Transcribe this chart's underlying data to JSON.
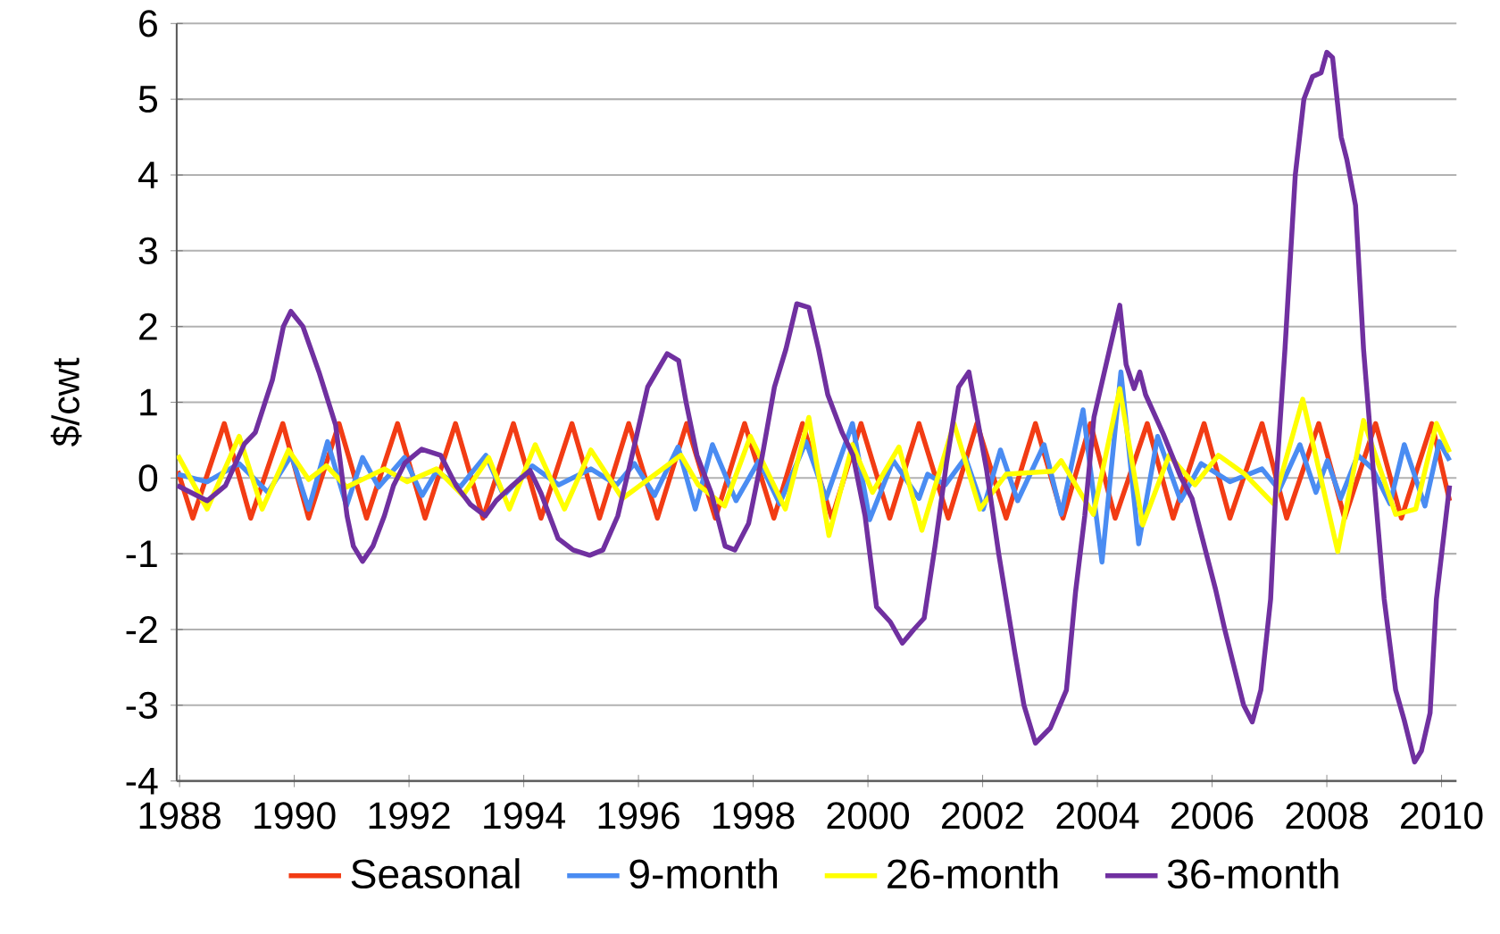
{
  "chart_data": {
    "type": "line",
    "ylabel": "$/cwt",
    "xlim": [
      1987.95,
      2010.26
    ],
    "xticks": [
      1988,
      1990,
      1992,
      1994,
      1996,
      1998,
      2000,
      2002,
      2004,
      2006,
      2008,
      2010
    ],
    "ylim": [
      -4,
      6
    ],
    "yticks": [
      -4,
      -3,
      -2,
      -1,
      0,
      1,
      2,
      3,
      4,
      5,
      6
    ],
    "grid": "y",
    "legend": "bottom",
    "series": [
      {
        "name": "Seasonal",
        "color": "#f23c14",
        "x": [
          1987.97,
          1988.23,
          1988.78,
          1989.24,
          1989.8,
          1990.25,
          1990.78,
          1991.26,
          1991.8,
          1992.28,
          1992.81,
          1993.29,
          1993.82,
          1994.3,
          1994.84,
          1995.32,
          1995.83,
          1996.33,
          1996.84,
          1997.34,
          1997.85,
          1998.36,
          1998.86,
          1999.37,
          1999.88,
          2000.38,
          2000.89,
          2001.4,
          2001.9,
          2002.41,
          2002.92,
          2003.4,
          2003.88,
          2004.31,
          2004.87,
          2005.32,
          2005.86,
          2006.31,
          2006.87,
          2007.3,
          2007.86,
          2008.31,
          2008.85,
          2009.3,
          2009.83,
          2010.14
        ],
        "values": [
          0.09,
          -0.53,
          0.72,
          -0.53,
          0.72,
          -0.53,
          0.72,
          -0.53,
          0.72,
          -0.53,
          0.72,
          -0.53,
          0.72,
          -0.53,
          0.72,
          -0.53,
          0.72,
          -0.53,
          0.72,
          -0.53,
          0.72,
          -0.53,
          0.72,
          -0.53,
          0.72,
          -0.53,
          0.72,
          -0.53,
          0.72,
          -0.53,
          0.72,
          -0.53,
          0.72,
          -0.53,
          0.72,
          -0.53,
          0.72,
          -0.53,
          0.72,
          -0.53,
          0.72,
          -0.53,
          0.72,
          -0.53,
          0.72,
          -0.3
        ]
      },
      {
        "name": "9-month",
        "color": "#4a8cf2",
        "x": [
          1987.97,
          1988.48,
          1989.04,
          1989.54,
          1989.95,
          1990.25,
          1990.58,
          1990.91,
          1991.19,
          1991.47,
          1991.92,
          1992.23,
          1992.48,
          1992.89,
          1993.34,
          1993.65,
          1994.15,
          1994.61,
          1995.17,
          1995.62,
          1995.93,
          1996.28,
          1996.69,
          1996.99,
          1997.29,
          1997.7,
          1998.1,
          1998.46,
          1998.92,
          1999.27,
          1999.73,
          2000.03,
          2000.44,
          2000.89,
          2001.04,
          2001.35,
          2001.7,
          2002.01,
          2002.31,
          2002.61,
          2003.07,
          2003.37,
          2003.75,
          2004.08,
          2004.41,
          2004.72,
          2005.05,
          2005.45,
          2005.81,
          2006.31,
          2006.87,
          2007.17,
          2007.53,
          2007.81,
          2008.01,
          2008.24,
          2008.54,
          2008.8,
          2009.1,
          2009.35,
          2009.71,
          2009.96,
          2010.14
        ],
        "values": [
          0.05,
          -0.05,
          0.19,
          -0.19,
          0.3,
          -0.41,
          0.48,
          -0.37,
          0.27,
          -0.12,
          0.27,
          -0.23,
          0.09,
          -0.12,
          0.3,
          -0.23,
          0.16,
          -0.09,
          0.12,
          -0.09,
          0.19,
          -0.23,
          0.41,
          -0.41,
          0.44,
          -0.3,
          0.23,
          -0.34,
          0.48,
          -0.27,
          0.72,
          -0.55,
          0.23,
          -0.27,
          0.05,
          -0.09,
          0.27,
          -0.41,
          0.37,
          -0.3,
          0.44,
          -0.48,
          0.9,
          -1.11,
          1.4,
          -0.87,
          0.55,
          -0.3,
          0.19,
          -0.05,
          0.12,
          -0.16,
          0.44,
          -0.19,
          0.23,
          -0.27,
          0.3,
          0.12,
          -0.34,
          0.44,
          -0.37,
          0.48,
          0.23
        ]
      },
      {
        "name": "26-month",
        "color": "#ffff00",
        "x": [
          1987.97,
          1988.48,
          1989.04,
          1989.44,
          1989.9,
          1990.25,
          1990.56,
          1990.91,
          1991.57,
          1991.97,
          1992.48,
          1992.94,
          1993.39,
          1993.75,
          1994.2,
          1994.71,
          1995.17,
          1995.72,
          1996.74,
          1997.04,
          1997.5,
          1997.95,
          1998.56,
          1998.97,
          1999.32,
          1999.73,
          2000.08,
          2000.54,
          2000.94,
          2001.5,
          2001.95,
          2002.41,
          2003.22,
          2003.37,
          2003.93,
          2004.39,
          2004.79,
          2005.25,
          2005.7,
          2006.11,
          2006.57,
          2007.07,
          2007.58,
          2008.19,
          2008.64,
          2009.2,
          2009.55,
          2009.91,
          2010.14
        ],
        "values": [
          0.3,
          -0.41,
          0.55,
          -0.41,
          0.37,
          -0.02,
          0.16,
          -0.12,
          0.12,
          -0.05,
          0.12,
          -0.23,
          0.27,
          -0.41,
          0.44,
          -0.41,
          0.37,
          -0.27,
          0.3,
          -0.09,
          -0.37,
          0.55,
          -0.41,
          0.8,
          -0.76,
          0.44,
          -0.19,
          0.41,
          -0.69,
          0.72,
          -0.41,
          0.05,
          0.09,
          0.23,
          -0.48,
          1.18,
          -0.62,
          0.3,
          -0.09,
          0.3,
          0.05,
          -0.34,
          1.04,
          -0.97,
          0.76,
          -0.48,
          -0.41,
          0.72,
          0.34
        ]
      },
      {
        "name": "36-month",
        "color": "#7030a0",
        "x": [
          1987.96,
          1988.48,
          1988.8,
          1989.13,
          1989.32,
          1989.62,
          1989.81,
          1989.94,
          1990.15,
          1990.43,
          1990.72,
          1990.92,
          1991.03,
          1991.19,
          1991.37,
          1991.57,
          1991.73,
          1991.93,
          1992.22,
          1992.55,
          1992.82,
          1993.07,
          1993.33,
          1993.52,
          1993.8,
          1994.11,
          1994.3,
          1994.6,
          1994.86,
          1995.15,
          1995.38,
          1995.64,
          1995.92,
          1996.16,
          1996.5,
          1996.7,
          1996.83,
          1997.02,
          1997.27,
          1997.51,
          1997.68,
          1997.92,
          1998.16,
          1998.37,
          1998.57,
          1998.76,
          1998.97,
          1999.14,
          1999.3,
          1999.55,
          1999.74,
          1999.95,
          2000.15,
          2000.39,
          2000.6,
          2000.8,
          2000.98,
          2001.17,
          2001.37,
          2001.58,
          2001.76,
          2002.07,
          2002.28,
          2002.56,
          2002.72,
          2002.92,
          2003.18,
          2003.46,
          2003.62,
          2003.78,
          2003.94,
          2004.39,
          2004.5,
          2004.64,
          2004.74,
          2004.84,
          2005.15,
          2005.45,
          2005.65,
          2006.06,
          2006.22,
          2006.55,
          2006.7,
          2006.85,
          2007.02,
          2007.12,
          2007.27,
          2007.45,
          2007.6,
          2007.75,
          2007.9,
          2008.0,
          2008.1,
          2008.25,
          2008.35,
          2008.5,
          2008.64,
          2008.82,
          2009.0,
          2009.2,
          2009.35,
          2009.53,
          2009.65,
          2009.8,
          2009.91,
          2010.14
        ],
        "values": [
          -0.1,
          -0.3,
          -0.1,
          0.45,
          0.6,
          1.3,
          2.0,
          2.2,
          2.0,
          1.4,
          0.7,
          -0.5,
          -0.9,
          -1.1,
          -0.9,
          -0.5,
          -0.1,
          0.2,
          0.38,
          0.3,
          -0.1,
          -0.35,
          -0.5,
          -0.3,
          -0.1,
          0.1,
          -0.2,
          -0.8,
          -0.95,
          -1.02,
          -0.95,
          -0.5,
          0.4,
          1.2,
          1.64,
          1.55,
          1.0,
          0.3,
          -0.2,
          -0.9,
          -0.95,
          -0.6,
          0.3,
          1.2,
          1.7,
          2.3,
          2.25,
          1.7,
          1.1,
          0.6,
          0.3,
          -0.5,
          -1.7,
          -1.9,
          -2.18,
          -2.0,
          -1.85,
          -0.9,
          0.2,
          1.2,
          1.4,
          0.1,
          -1.0,
          -2.3,
          -3.0,
          -3.5,
          -3.3,
          -2.8,
          -1.5,
          -0.5,
          0.8,
          2.28,
          1.5,
          1.18,
          1.4,
          1.1,
          0.58,
          0.02,
          -0.27,
          -1.47,
          -2.0,
          -3.0,
          -3.22,
          -2.8,
          -1.6,
          0.0,
          1.7,
          4.0,
          5.0,
          5.3,
          5.35,
          5.62,
          5.55,
          4.5,
          4.2,
          3.6,
          1.7,
          0.0,
          -1.6,
          -2.8,
          -3.2,
          -3.75,
          -3.6,
          -3.1,
          -1.6,
          -0.1
        ]
      }
    ]
  }
}
